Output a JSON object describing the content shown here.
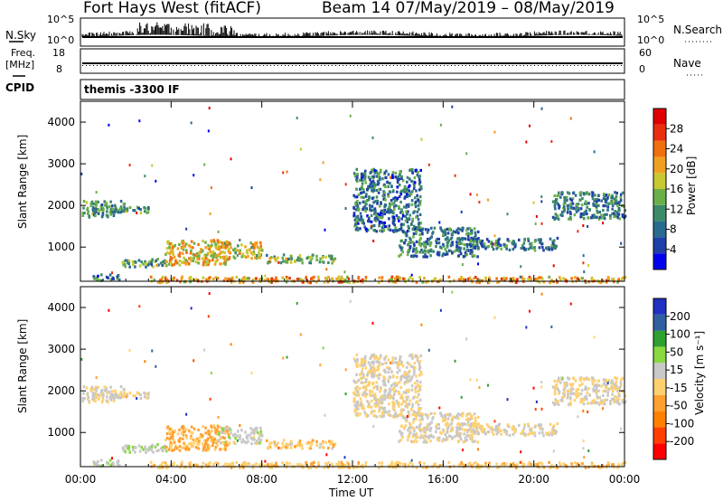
{
  "header": {
    "station": "Fort Hays West (fitACF)",
    "beam_date": "Beam 14 07/May/2019 – 08/May/2019"
  },
  "top_panels": {
    "nsky_label": "N.Sky",
    "nsky_ticks": [
      "10^5",
      "10^0"
    ],
    "nsearch_label": "N.Search",
    "nsearch_ticks": [
      "10^5",
      "10^0"
    ],
    "freq_label_1": "Freq.",
    "freq_label_2": "[MHz]",
    "freq_ticks": [
      "18",
      "8"
    ],
    "nave_label": "Nave",
    "nave_ticks": [
      "60",
      "0"
    ],
    "cpid_label": "CPID",
    "cpid_value": "themis -3300 IF"
  },
  "colors": {
    "power_scale": [
      "#0000ee",
      "#1f3fa8",
      "#2a6a8f",
      "#3d8a6a",
      "#6ab04a",
      "#c8c830",
      "#f0a020",
      "#f07010",
      "#e83010",
      "#e00000"
    ],
    "velocity_scale": [
      "#ff0000",
      "#ff4000",
      "#ff8000",
      "#ffa030",
      "#ffd070",
      "#c8c8c8",
      "#88d840",
      "#30a030",
      "#3060a0",
      "#2030c0"
    ]
  },
  "chart_data": [
    {
      "type": "heatmap",
      "name": "power",
      "ylabel": "Slant Range [km]",
      "xlabel": "",
      "y_ticks": [
        "4000",
        "3000",
        "2000",
        "1000"
      ],
      "y_tick_values": [
        4000,
        3000,
        2000,
        1000
      ],
      "ylim": [
        180,
        4500
      ],
      "x_ticks": [
        "00:00",
        "04:00",
        "08:00",
        "12:00",
        "16:00",
        "20:00",
        "00:00"
      ],
      "x_tick_hours": [
        0,
        4,
        8,
        12,
        16,
        20,
        24
      ],
      "colorbar_label": "Power [dB]",
      "colorbar_ticks": [
        "28",
        "24",
        "20",
        "16",
        "12",
        "8",
        "4"
      ],
      "colorbar_range": [
        0,
        30
      ]
    },
    {
      "type": "heatmap",
      "name": "velocity",
      "ylabel": "Slant Range [km]",
      "xlabel": "Time UT",
      "y_ticks": [
        "4000",
        "3000",
        "2000",
        "1000"
      ],
      "y_tick_values": [
        4000,
        3000,
        2000,
        1000
      ],
      "ylim": [
        180,
        4500
      ],
      "x_ticks": [
        "00:00",
        "04:00",
        "08:00",
        "12:00",
        "16:00",
        "20:00",
        "00:00"
      ],
      "x_tick_hours": [
        0,
        4,
        8,
        12,
        16,
        20,
        24
      ],
      "colorbar_label": "Velocity [m s⁻¹]",
      "colorbar_ticks": [
        "200",
        "100",
        "50",
        "15",
        "-15",
        "-50",
        "-100",
        "-200"
      ],
      "colorbar_range": [
        -250,
        250
      ]
    }
  ],
  "echo_regions": [
    {
      "t0": 0.05,
      "t1": 1.9,
      "r0": 1750,
      "r1": 2150,
      "pw": 11,
      "vel": 0
    },
    {
      "t0": 1.5,
      "t1": 3.0,
      "r0": 1850,
      "r1": 2000,
      "pw": 10,
      "vel": -5
    },
    {
      "t0": 1.8,
      "t1": 3.8,
      "r0": 550,
      "r1": 750,
      "pw": 13,
      "vel": 40
    },
    {
      "t0": 3.7,
      "t1": 6.5,
      "r0": 600,
      "r1": 1200,
      "pw": 18,
      "vel": -60
    },
    {
      "t0": 6.0,
      "t1": 8.0,
      "r0": 750,
      "r1": 1150,
      "pw": 17,
      "vel": 20
    },
    {
      "t0": 8.0,
      "t1": 11.2,
      "r0": 650,
      "r1": 850,
      "pw": 14,
      "vel": -30
    },
    {
      "t0": 0.5,
      "t1": 1.8,
      "r0": 230,
      "r1": 380,
      "pw": 8,
      "vel": 40
    },
    {
      "t0": 3.0,
      "t1": 24.0,
      "r0": 180,
      "r1": 320,
      "pw": 20,
      "vel": -35
    },
    {
      "t0": 12.0,
      "t1": 15.0,
      "r0": 1400,
      "r1": 2900,
      "pw": 8,
      "vel": 0
    },
    {
      "t0": 14.0,
      "t1": 17.5,
      "r0": 800,
      "r1": 1500,
      "pw": 9,
      "vel": 0
    },
    {
      "t0": 16.5,
      "t1": 21.0,
      "r0": 950,
      "r1": 1250,
      "pw": 9,
      "vel": 0
    },
    {
      "t0": 20.8,
      "t1": 24.0,
      "r0": 1700,
      "r1": 2350,
      "pw": 9,
      "vel": 0
    }
  ]
}
